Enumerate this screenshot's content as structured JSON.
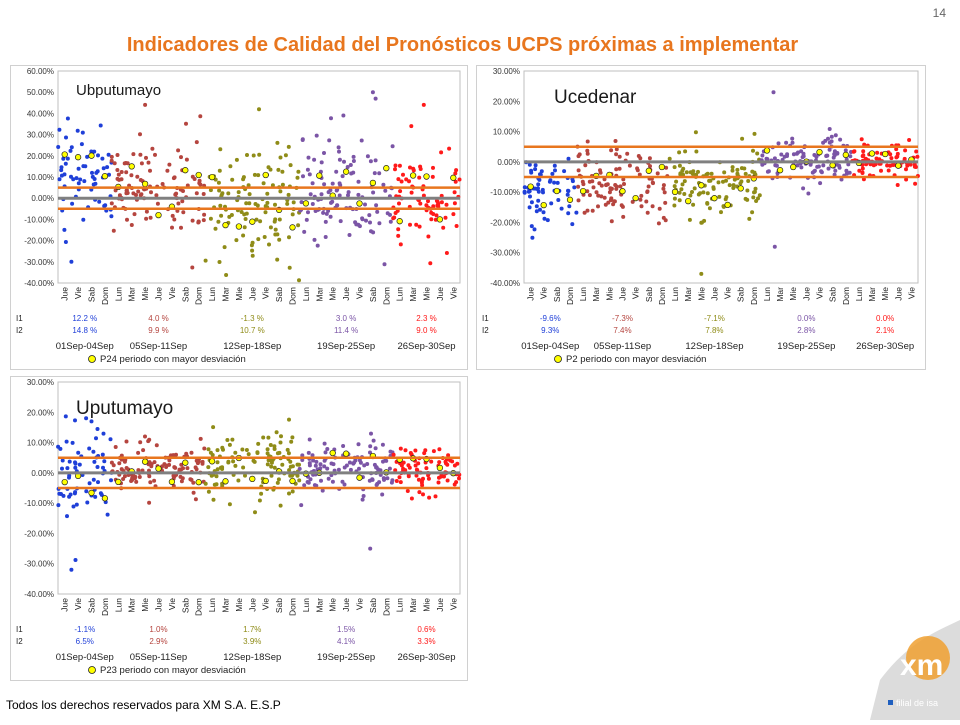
{
  "page": {
    "title": "Indicadores de Calidad del Pronósticos UCPS próximas a implementar",
    "page_number": "14",
    "footer": "Todos los derechos reservados para XM S.A. E.S.P",
    "logo_text": "xm",
    "logo_tagline": "filial de isa"
  },
  "colors": {
    "title": "#e8761e",
    "band": "#e8761e",
    "zero": "#808080",
    "highlight_fill": "#ffff00",
    "periods": [
      "#1f3fd8",
      "#b5453f",
      "#8f8c18",
      "#7b55a6",
      "#ff1a1a"
    ]
  },
  "chart_data": [
    {
      "type": "scatter",
      "title": "Ubputumayo",
      "yticks": [
        "60.00%",
        "50.00%",
        "40.00%",
        "30.00%",
        "20.00%",
        "10.00%",
        "0.00%",
        "-10.00%",
        "-20.00%",
        "-30.00%",
        "-40.00%"
      ],
      "ylim": [
        -40,
        60
      ],
      "band": [
        5,
        -5
      ],
      "xticks": [
        "Jue",
        "Vie",
        "Sab",
        "Dom",
        "Lun",
        "Mar",
        "Mie",
        "Jue",
        "Vie",
        "Sab",
        "Dom",
        "Lun",
        "Mar",
        "Mie",
        "Jue",
        "Vie",
        "Sab",
        "Dom",
        "Lun",
        "Mar",
        "Mie",
        "Jue",
        "Vie",
        "Sab",
        "Dom",
        "Lun",
        "Mar",
        "Mie",
        "Jue",
        "Vie"
      ],
      "periods": [
        "01Sep-04Sep",
        "05Sep-11Sep",
        "12Sep-18Sep",
        "19Sep-25Sep",
        "26Sep-30Sep"
      ],
      "period_days": [
        4,
        7,
        7,
        7,
        5
      ],
      "indicators": [
        {
          "name": "I1",
          "values": [
            "12.2 %",
            "4.0 %",
            "-1.3 %",
            "3.0 %",
            "2.3 %"
          ]
        },
        {
          "name": "I2",
          "values": [
            "14.8 %",
            "9.9 %",
            "10.7 %",
            "11.4 %",
            "9.0 %"
          ]
        }
      ],
      "legend": "P24  periodo con mayor desviación",
      "period_stats": [
        {
          "center": 12,
          "spread": 13
        },
        {
          "center": 4,
          "spread": 12
        },
        {
          "center": -3,
          "spread": 13
        },
        {
          "center": 2,
          "spread": 12
        },
        {
          "center": 1,
          "spread": 11
        }
      ],
      "extremes": [
        {
          "x": 0.5,
          "y": -30
        },
        {
          "x": 6.0,
          "y": 44
        },
        {
          "x": 14.5,
          "y": 42
        },
        {
          "x": 20.8,
          "y": 39
        },
        {
          "x": 23.0,
          "y": 50
        },
        {
          "x": 23.2,
          "y": 47
        },
        {
          "x": 26.8,
          "y": 44
        }
      ]
    },
    {
      "type": "scatter",
      "title": "Ucedenar",
      "yticks": [
        "30.00%",
        "20.00%",
        "10.00%",
        "0.00%",
        "-10.00%",
        "-20.00%",
        "-30.00%",
        "-40.00%"
      ],
      "ylim": [
        -40,
        30
      ],
      "band": [
        5,
        -5
      ],
      "xticks": [
        "Jue",
        "Vie",
        "Sab",
        "Dom",
        "Lun",
        "Mar",
        "Mie",
        "Jue",
        "Vie",
        "Sab",
        "Dom",
        "Lun",
        "Mar",
        "Mie",
        "Jue",
        "Vie",
        "Sab",
        "Dom",
        "Lun",
        "Mar",
        "Mie",
        "Jue",
        "Vie",
        "Sab",
        "Dom",
        "Lun",
        "Mar",
        "Mie",
        "Jue",
        "Vie"
      ],
      "periods": [
        "01Sep-04Sep",
        "05Sep-11Sep",
        "12Sep-18Sep",
        "19Sep-25Sep",
        "26Sep-30Sep"
      ],
      "period_days": [
        4,
        7,
        7,
        7,
        5
      ],
      "indicators": [
        {
          "name": "I1",
          "values": [
            "-9.6%",
            "-7.3%",
            "-7.1%",
            "0.0%",
            "0.0%"
          ]
        },
        {
          "name": "I2",
          "values": [
            "9.3%",
            "7.4%",
            "7.8%",
            "2.8%",
            "2.1%"
          ]
        }
      ],
      "legend": "P2  periodo con mayor desviación",
      "period_stats": [
        {
          "center": -9,
          "spread": 6
        },
        {
          "center": -7,
          "spread": 6
        },
        {
          "center": -7,
          "spread": 7
        },
        {
          "center": 1,
          "spread": 4
        },
        {
          "center": 0,
          "spread": 3
        }
      ],
      "extremes": [
        {
          "x": 13.0,
          "y": -37
        },
        {
          "x": 18.5,
          "y": 23
        },
        {
          "x": 18.6,
          "y": -28
        }
      ]
    },
    {
      "type": "scatter",
      "title": "Uputumayo",
      "yticks": [
        "30.00%",
        "20.00%",
        "10.00%",
        "0.00%",
        "-10.00%",
        "-20.00%",
        "-30.00%",
        "-40.00%"
      ],
      "ylim": [
        -40,
        30
      ],
      "band": [
        5,
        -5
      ],
      "xticks": [
        "Jue",
        "Vie",
        "Sab",
        "Dom",
        "Lun",
        "Mar",
        "Mie",
        "Jue",
        "Vie",
        "Sab",
        "Dom",
        "Lun",
        "Mar",
        "Mie",
        "Jue",
        "Vie",
        "Sab",
        "Dom",
        "Lun",
        "Mar",
        "Mie",
        "Jue",
        "Vie",
        "Sab",
        "Dom",
        "Lun",
        "Mar",
        "Mie",
        "Jue",
        "Vie"
      ],
      "periods": [
        "01Sep-04Sep",
        "05Sep-11Sep",
        "12Sep-18Sep",
        "19Sep-25Sep",
        "26Sep-30Sep"
      ],
      "period_days": [
        4,
        7,
        7,
        7,
        5
      ],
      "indicators": [
        {
          "name": "I1",
          "values": [
            "-1.1%",
            "1.0%",
            "1.7%",
            "1.5%",
            "0.6%"
          ]
        },
        {
          "name": "I2",
          "values": [
            "6.5%",
            "2.9%",
            "3.9%",
            "4.1%",
            "3.3%"
          ]
        }
      ],
      "legend": "P23  periodo con mayor desviación",
      "period_stats": [
        {
          "center": 0,
          "spread": 8
        },
        {
          "center": 1,
          "spread": 4
        },
        {
          "center": 2,
          "spread": 5
        },
        {
          "center": 2,
          "spread": 5
        },
        {
          "center": 1,
          "spread": 4
        }
      ],
      "extremes": [
        {
          "x": 0.5,
          "y": -32
        },
        {
          "x": 1.6,
          "y": 18
        },
        {
          "x": 2.0,
          "y": 17
        },
        {
          "x": 22.8,
          "y": -25
        },
        {
          "x": 14.2,
          "y": -13
        }
      ]
    }
  ]
}
